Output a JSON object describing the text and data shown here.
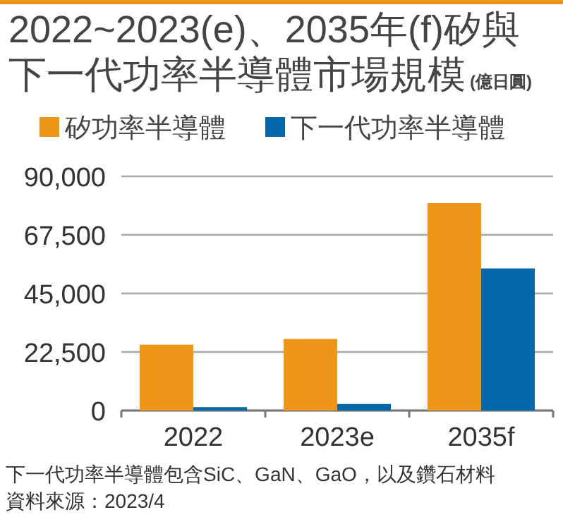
{
  "chart_data": {
    "type": "bar",
    "title": "2022~2023(e)、2035年(f)矽與下一代功率半導體市場規模",
    "subtitle": "(億日圓)",
    "categories": [
      "2022",
      "2023e",
      "2035f"
    ],
    "series": [
      {
        "name": "矽功率半導體",
        "color": "#ee9618",
        "values": [
          25300,
          27500,
          79700
        ]
      },
      {
        "name": "下一代功率半導體",
        "color": "#0467ab",
        "values": [
          1300,
          2500,
          54600
        ]
      }
    ],
    "ylim": [
      0,
      90000
    ],
    "yticks": [
      0,
      {
        "value": 22500,
        "label": "22,500"
      },
      {
        "value": 45000,
        "label": "45,000"
      },
      {
        "value": 67500,
        "label": "67,500"
      },
      {
        "value": 90000,
        "label": "90,000"
      }
    ],
    "grid": "y",
    "legend": "top",
    "annotations": [
      "下一代功率半導體包含SiC、GaN、GaO，以及鑽石材料",
      "資料來源：2023/4"
    ]
  }
}
